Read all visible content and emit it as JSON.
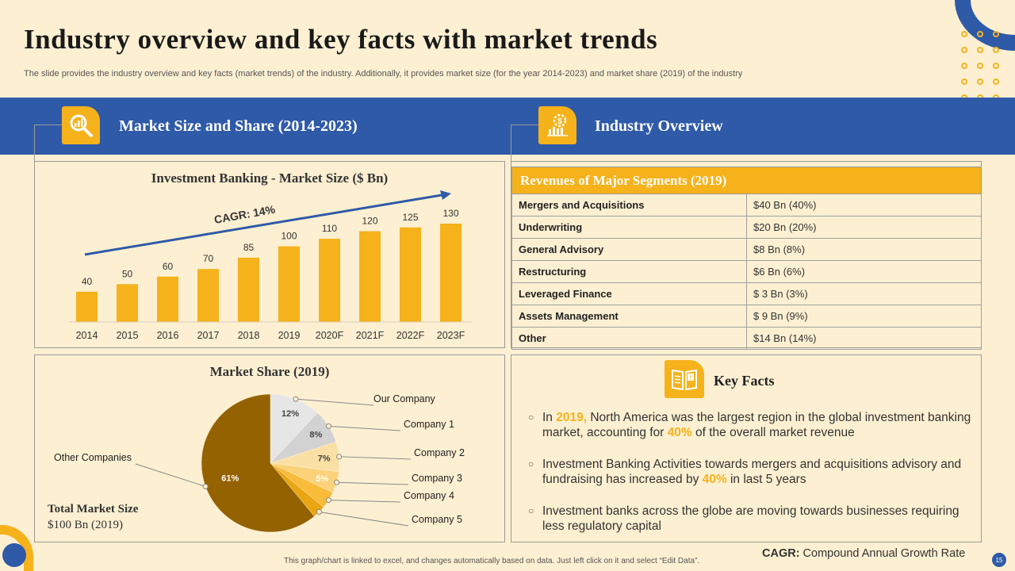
{
  "title": "Industry overview and key facts with market trends",
  "subtitle": "The slide provides the industry overview and key facts (market trends) of the industry. Additionally, it provides market size (for the year 2014-2023) and market share (2019) of the industry",
  "left_header": {
    "title": "Market Size and Share (2014-2023)",
    "icon": "magnifier-chart-icon"
  },
  "right_header": {
    "title": "Industry  Overview",
    "icon": "dollar-gear-chart-icon"
  },
  "chart_data": [
    {
      "type": "bar",
      "title": "Investment Banking - Market Size ($ Bn)",
      "categories": [
        "2014",
        "2015",
        "2016",
        "2017",
        "2018",
        "2019",
        "2020F",
        "2021F",
        "2022F",
        "2023F"
      ],
      "values": [
        40,
        50,
        60,
        70,
        85,
        100,
        110,
        120,
        125,
        130
      ],
      "annotation": "CAGR: 14%",
      "xlabel": "",
      "ylabel": "",
      "ylim": [
        0,
        140
      ],
      "color": "#f6b21b"
    },
    {
      "type": "pie",
      "title": "Market Share (2019)",
      "slices": [
        {
          "label": "Our Company",
          "value": 12,
          "display": "12%",
          "color": "#e6e6e6"
        },
        {
          "label": "Company 1",
          "value": 8,
          "display": "8%",
          "color": "#d2d2d2"
        },
        {
          "label": "Company 2",
          "value": 7,
          "display": "7%",
          "color": "#fbe0a6"
        },
        {
          "label": "Company 3",
          "value": 5,
          "display": "5%",
          "color": "#fbd27a"
        },
        {
          "label": "Company 4",
          "value": 4,
          "display": "",
          "color": "#f8bb3a"
        },
        {
          "label": "Company 5",
          "value": 3,
          "display": "",
          "color": "#e9a512"
        },
        {
          "label": "Other Companies",
          "value": 61,
          "display": "61%",
          "color": "#946200"
        }
      ]
    }
  ],
  "total_market": {
    "label": "Total Market Size",
    "value": "$100 Bn (2019)"
  },
  "segments": {
    "header": "Revenues of Major Segments (2019)",
    "rows": [
      {
        "name": "Mergers and Acquisitions",
        "value": "$40 Bn (40%)"
      },
      {
        "name": "Underwriting",
        "value": "$20 Bn (20%)"
      },
      {
        "name": "General Advisory",
        "value": "$8 Bn (8%)"
      },
      {
        "name": "Restructuring",
        "value": "$6 Bn (6%)"
      },
      {
        "name": "Leveraged Finance",
        "value": "$ 3 Bn (3%)"
      },
      {
        "name": "Assets  Management",
        "value": "$ 9 Bn (9%)"
      },
      {
        "name": "Other",
        "value": "$14 Bn (14%)"
      }
    ]
  },
  "key_facts": {
    "title": "Key Facts",
    "icon": "document-alert-icon",
    "items": [
      {
        "pre": "In ",
        "h1": "2019,",
        "mid": " North America was the largest region in the global investment banking market, accounting for ",
        "h2": "40%",
        "post": " of the overall market revenue"
      },
      {
        "pre": "Investment  Banking Activities towards mergers and acquisitions advisory and fundraising has increased by ",
        "h1": "40%",
        "mid": " in last 5 years",
        "h2": "",
        "post": ""
      },
      {
        "pre": "Investment  banks across the globe are moving towards businesses requiring less regulatory capital",
        "h1": "",
        "mid": "",
        "h2": "",
        "post": ""
      }
    ]
  },
  "footnote": "This graph/chart is linked to excel, and changes automatically based on data. Just left click on it and select “Edit Data”.",
  "cagr_definition": {
    "term": "CAGR:",
    "definition": " Compound Annual Growth Rate"
  },
  "page_number": "15",
  "colors": {
    "accent": "#f6b21b",
    "brand_blue": "#2f5aa8",
    "background": "#fdf0d2"
  }
}
